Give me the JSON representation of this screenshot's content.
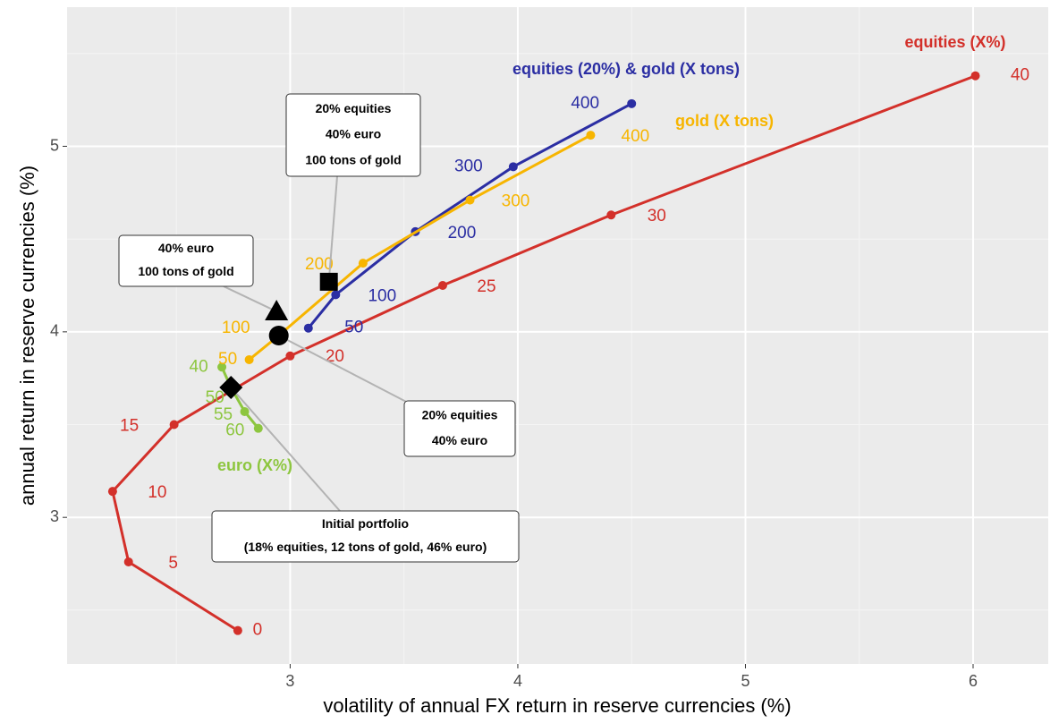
{
  "chart_data": {
    "type": "scatter-path",
    "x_label": "volatility of annual FX return in reserve currencies (%)",
    "y_label": "annual return in reserve currencies (%)",
    "xlim": [
      2.02,
      6.33
    ],
    "ylim": [
      2.21,
      5.75
    ],
    "xticks": [
      3,
      4,
      5,
      6
    ],
    "yticks": [
      3,
      4,
      5
    ],
    "grid": true,
    "series": [
      {
        "name": "equities (X%)",
        "color": "#d3302a",
        "point_labels": [
          0,
          5,
          10,
          15,
          20,
          25,
          30,
          40
        ],
        "x": [
          2.77,
          2.29,
          2.22,
          2.49,
          3.0,
          3.67,
          4.41,
          6.01
        ],
        "values": [
          2.39,
          2.76,
          3.14,
          3.5,
          3.87,
          4.25,
          4.63,
          5.38
        ]
      },
      {
        "name": "equities (20%) & gold (X tons)",
        "color": "#2b2ea3",
        "point_labels": [
          50,
          100,
          200,
          300,
          400
        ],
        "x": [
          3.08,
          3.2,
          3.55,
          3.98,
          4.5
        ],
        "values": [
          4.02,
          4.2,
          4.54,
          4.89,
          5.23
        ]
      },
      {
        "name": "gold (X tons)",
        "color": "#f7b500",
        "point_labels": [
          50,
          100,
          200,
          300,
          400
        ],
        "x": [
          2.82,
          2.95,
          3.32,
          3.79,
          4.32
        ],
        "values": [
          3.85,
          3.98,
          4.37,
          4.71,
          5.06
        ]
      },
      {
        "name": "euro (X%)",
        "color": "#8dc63f",
        "point_labels": [
          40,
          50,
          55,
          60
        ],
        "x": [
          2.7,
          2.74,
          2.8,
          2.86
        ],
        "values": [
          3.81,
          3.7,
          3.57,
          3.48
        ]
      }
    ],
    "markers": [
      {
        "shape": "square",
        "x": 3.17,
        "y": 4.27,
        "label": [
          "20% equities",
          "40% euro",
          "100 tons of gold"
        ]
      },
      {
        "shape": "triangle",
        "x": 2.94,
        "y": 4.11,
        "label": [
          "40% euro",
          "100 tons of gold"
        ]
      },
      {
        "shape": "circle",
        "x": 2.95,
        "y": 3.98,
        "label": [
          "20% equities",
          "40% euro"
        ]
      },
      {
        "shape": "diamond",
        "x": 2.74,
        "y": 3.7,
        "label": [
          "Initial portfolio",
          "(18% equities, 12 tons of gold, 46% euro)"
        ]
      }
    ]
  }
}
